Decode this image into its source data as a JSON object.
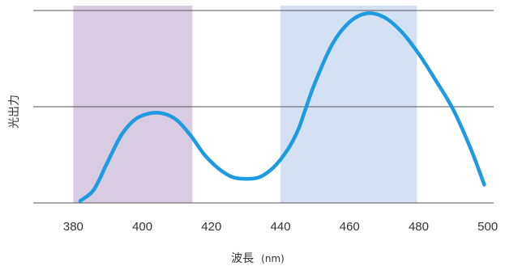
{
  "chart_data": {
    "type": "line",
    "title": "",
    "xlabel": "波長",
    "xlabel_unit": "(nm)",
    "ylabel": "光出力",
    "xlim": [
      367,
      505
    ],
    "ylim": [
      0,
      2.05
    ],
    "x_ticks": [
      "380",
      "400",
      "420",
      "440",
      "460",
      "480",
      "500"
    ],
    "y_gridlines": [
      0,
      1,
      2
    ],
    "y_tick_labels_shown": false,
    "grid": true,
    "highlight_bands": [
      {
        "x_range": [
          380,
          414.5
        ],
        "color": "#d9cbe1"
      },
      {
        "x_range": [
          440,
          479.5
        ],
        "color": "#d3e1f3"
      }
    ],
    "series": [
      {
        "color": "#1e9ae0",
        "x": [
          382,
          386,
          390,
          394,
          398,
          402,
          406,
          410,
          414,
          418,
          422,
          426,
          430,
          434,
          438,
          442,
          445,
          447,
          450,
          455,
          460,
          465,
          470,
          475,
          480,
          485,
          490,
          495,
          499
        ],
        "y": [
          0.02,
          0.14,
          0.43,
          0.71,
          0.87,
          0.93,
          0.93,
          0.86,
          0.7,
          0.5,
          0.36,
          0.27,
          0.25,
          0.27,
          0.37,
          0.55,
          0.75,
          0.95,
          1.25,
          1.65,
          1.88,
          1.97,
          1.93,
          1.78,
          1.55,
          1.27,
          0.97,
          0.57,
          0.19
        ]
      }
    ]
  }
}
